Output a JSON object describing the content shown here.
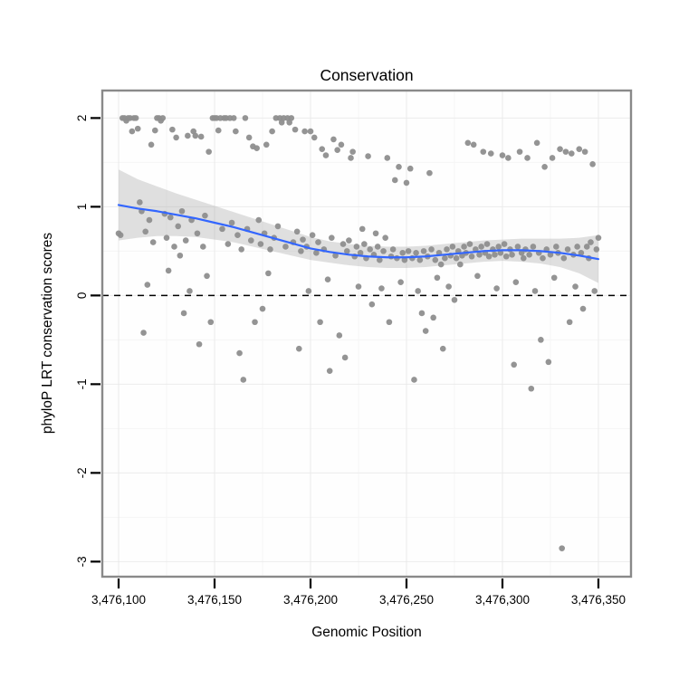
{
  "chart_data": {
    "type": "scatter",
    "title": "Conservation",
    "xlabel": "Genomic Position",
    "ylabel": "phyloP LRT conservation scores",
    "xlim": [
      3476091.5,
      3476367
    ],
    "ylim": [
      -3.17,
      2.31
    ],
    "grid": true,
    "x_ticks": [
      {
        "value": 3476100,
        "label": "3,476,100"
      },
      {
        "value": 3476150,
        "label": "3,476,150"
      },
      {
        "value": 3476200,
        "label": "3,476,200"
      },
      {
        "value": 3476250,
        "label": "3,476,250"
      },
      {
        "value": 3476300,
        "label": "3,476,300"
      },
      {
        "value": 3476350,
        "label": "3,476,350"
      }
    ],
    "x_minor_ticks": [
      3476125,
      3476175,
      3476225,
      3476275,
      3476325
    ],
    "y_ticks": [
      {
        "value": -3,
        "label": "-3"
      },
      {
        "value": -2,
        "label": "-2"
      },
      {
        "value": -1,
        "label": "-1"
      },
      {
        "value": 0,
        "label": "0"
      },
      {
        "value": 1,
        "label": "1"
      },
      {
        "value": 2,
        "label": "2"
      }
    ],
    "y_minor_ticks": [
      -2.5,
      -1.5,
      -0.5,
      0.5,
      1.5
    ],
    "zero_line": {
      "y": 0,
      "style": "dashed",
      "color": "#000000"
    },
    "colors": {
      "point": "#8e8e8e",
      "smooth_line": "#3366ff",
      "band": "#999999",
      "band_opacity": 0.3,
      "panel_bg": "#fefefe",
      "grid_major": "#ebebeb",
      "grid_minor": "#f5f5f5",
      "panel_border": "#898989",
      "text": "#000000"
    },
    "smooth": {
      "method": "loess",
      "x": [
        3476100,
        3476110,
        3476120,
        3476130,
        3476140,
        3476150,
        3476160,
        3476170,
        3476180,
        3476190,
        3476200,
        3476210,
        3476220,
        3476230,
        3476240,
        3476250,
        3476260,
        3476270,
        3476280,
        3476290,
        3476300,
        3476310,
        3476320,
        3476330,
        3476340,
        3476350
      ],
      "y": [
        1.02,
        0.98,
        0.95,
        0.91,
        0.87,
        0.82,
        0.77,
        0.71,
        0.65,
        0.59,
        0.53,
        0.49,
        0.46,
        0.44,
        0.43,
        0.43,
        0.44,
        0.46,
        0.48,
        0.5,
        0.51,
        0.51,
        0.5,
        0.48,
        0.45,
        0.41
      ],
      "upper": [
        1.42,
        1.31,
        1.23,
        1.15,
        1.08,
        1.01,
        0.94,
        0.87,
        0.8,
        0.73,
        0.66,
        0.61,
        0.58,
        0.56,
        0.55,
        0.55,
        0.56,
        0.58,
        0.6,
        0.62,
        0.63,
        0.64,
        0.64,
        0.64,
        0.65,
        0.68
      ],
      "lower": [
        0.62,
        0.65,
        0.67,
        0.67,
        0.66,
        0.63,
        0.6,
        0.55,
        0.5,
        0.45,
        0.4,
        0.37,
        0.34,
        0.32,
        0.31,
        0.31,
        0.32,
        0.34,
        0.36,
        0.38,
        0.39,
        0.38,
        0.36,
        0.32,
        0.25,
        0.14
      ]
    },
    "points": [
      [
        3476100,
        0.7
      ],
      [
        3476101,
        0.68
      ],
      [
        3476102,
        2
      ],
      [
        3476103,
        2
      ],
      [
        3476104,
        1.97
      ],
      [
        3476105,
        2
      ],
      [
        3476106,
        2
      ],
      [
        3476107,
        1.85
      ],
      [
        3476108,
        2
      ],
      [
        3476109,
        2
      ],
      [
        3476110,
        1.88
      ],
      [
        3476111,
        1.05
      ],
      [
        3476112,
        0.95
      ],
      [
        3476113,
        -0.42
      ],
      [
        3476114,
        0.72
      ],
      [
        3476115,
        0.12
      ],
      [
        3476116,
        0.85
      ],
      [
        3476117,
        1.7
      ],
      [
        3476118,
        0.6
      ],
      [
        3476119,
        1.86
      ],
      [
        3476120,
        2
      ],
      [
        3476121,
        2
      ],
      [
        3476122,
        1.97
      ],
      [
        3476123,
        2
      ],
      [
        3476124,
        0.92
      ],
      [
        3476125,
        0.65
      ],
      [
        3476126,
        0.28
      ],
      [
        3476127,
        0.88
      ],
      [
        3476128,
        1.87
      ],
      [
        3476129,
        0.55
      ],
      [
        3476130,
        1.78
      ],
      [
        3476131,
        0.78
      ],
      [
        3476132,
        0.45
      ],
      [
        3476133,
        0.95
      ],
      [
        3476134,
        -0.2
      ],
      [
        3476135,
        0.62
      ],
      [
        3476136,
        1.8
      ],
      [
        3476137,
        0.05
      ],
      [
        3476138,
        0.85
      ],
      [
        3476139,
        1.85
      ],
      [
        3476140,
        1.8
      ],
      [
        3476141,
        0.7
      ],
      [
        3476142,
        -0.55
      ],
      [
        3476143,
        1.79
      ],
      [
        3476144,
        0.55
      ],
      [
        3476145,
        0.9
      ],
      [
        3476146,
        0.22
      ],
      [
        3476147,
        1.62
      ],
      [
        3476148,
        -0.3
      ],
      [
        3476149,
        2
      ],
      [
        3476150,
        2
      ],
      [
        3476151,
        2
      ],
      [
        3476152,
        1.86
      ],
      [
        3476153,
        2
      ],
      [
        3476154,
        0.75
      ],
      [
        3476155,
        2
      ],
      [
        3476156,
        2
      ],
      [
        3476157,
        0.58
      ],
      [
        3476158,
        2
      ],
      [
        3476159,
        0.82
      ],
      [
        3476160,
        2
      ],
      [
        3476161,
        1.85
      ],
      [
        3476162,
        0.68
      ],
      [
        3476163,
        -0.65
      ],
      [
        3476164,
        0.52
      ],
      [
        3476165,
        -0.95
      ],
      [
        3476166,
        2
      ],
      [
        3476167,
        0.75
      ],
      [
        3476168,
        1.78
      ],
      [
        3476169,
        0.62
      ],
      [
        3476170,
        1.68
      ],
      [
        3476171,
        -0.3
      ],
      [
        3476172,
        1.66
      ],
      [
        3476173,
        0.85
      ],
      [
        3476174,
        0.58
      ],
      [
        3476175,
        -0.15
      ],
      [
        3476176,
        0.7
      ],
      [
        3476177,
        1.7
      ],
      [
        3476178,
        0.25
      ],
      [
        3476179,
        0.52
      ],
      [
        3476180,
        1.85
      ],
      [
        3476181,
        0.65
      ],
      [
        3476182,
        2
      ],
      [
        3476183,
        0.78
      ],
      [
        3476184,
        2
      ],
      [
        3476185,
        1.95
      ],
      [
        3476186,
        2
      ],
      [
        3476187,
        0.55
      ],
      [
        3476188,
        2
      ],
      [
        3476189,
        1.95
      ],
      [
        3476190,
        2
      ],
      [
        3476191,
        0.6
      ],
      [
        3476192,
        1.87
      ],
      [
        3476193,
        0.72
      ],
      [
        3476194,
        -0.6
      ],
      [
        3476195,
        0.5
      ],
      [
        3476196,
        0.63
      ],
      [
        3476197,
        1.85
      ],
      [
        3476198,
        0.55
      ],
      [
        3476199,
        0.05
      ],
      [
        3476200,
        1.85
      ],
      [
        3476201,
        0.68
      ],
      [
        3476202,
        1.78
      ],
      [
        3476203,
        0.48
      ],
      [
        3476204,
        0.6
      ],
      [
        3476205,
        -0.3
      ],
      [
        3476206,
        1.65
      ],
      [
        3476207,
        0.52
      ],
      [
        3476208,
        1.58
      ],
      [
        3476209,
        0.18
      ],
      [
        3476210,
        -0.85
      ],
      [
        3476211,
        0.65
      ],
      [
        3476212,
        1.76
      ],
      [
        3476213,
        0.45
      ],
      [
        3476214,
        1.64
      ],
      [
        3476215,
        -0.45
      ],
      [
        3476216,
        1.7
      ],
      [
        3476217,
        0.58
      ],
      [
        3476218,
        -0.7
      ],
      [
        3476219,
        0.5
      ],
      [
        3476220,
        0.62
      ],
      [
        3476221,
        1.55
      ],
      [
        3476222,
        1.62
      ],
      [
        3476223,
        0.44
      ],
      [
        3476224,
        0.55
      ],
      [
        3476225,
        0.1
      ],
      [
        3476226,
        0.48
      ],
      [
        3476227,
        0.75
      ],
      [
        3476228,
        0.58
      ],
      [
        3476229,
        0.42
      ],
      [
        3476230,
        1.57
      ],
      [
        3476231,
        0.52
      ],
      [
        3476232,
        -0.1
      ],
      [
        3476233,
        0.46
      ],
      [
        3476234,
        0.7
      ],
      [
        3476235,
        0.55
      ],
      [
        3476236,
        0.4
      ],
      [
        3476237,
        0.08
      ],
      [
        3476238,
        0.5
      ],
      [
        3476239,
        0.65
      ],
      [
        3476240,
        1.55
      ],
      [
        3476241,
        -0.3
      ],
      [
        3476242,
        0.44
      ],
      [
        3476243,
        0.52
      ],
      [
        3476244,
        1.3
      ],
      [
        3476245,
        0.42
      ],
      [
        3476246,
        1.45
      ],
      [
        3476247,
        0.15
      ],
      [
        3476248,
        0.48
      ],
      [
        3476249,
        0.4
      ],
      [
        3476250,
        1.27
      ],
      [
        3476251,
        0.5
      ],
      [
        3476252,
        1.43
      ],
      [
        3476253,
        0.42
      ],
      [
        3476254,
        -0.95
      ],
      [
        3476255,
        0.48
      ],
      [
        3476256,
        0.05
      ],
      [
        3476257,
        0.4
      ],
      [
        3476258,
        -0.2
      ],
      [
        3476259,
        0.5
      ],
      [
        3476260,
        -0.4
      ],
      [
        3476261,
        0.44
      ],
      [
        3476262,
        1.38
      ],
      [
        3476263,
        0.52
      ],
      [
        3476264,
        -0.25
      ],
      [
        3476265,
        0.4
      ],
      [
        3476266,
        0.2
      ],
      [
        3476267,
        0.48
      ],
      [
        3476268,
        0.35
      ],
      [
        3476269,
        -0.6
      ],
      [
        3476270,
        0.42
      ],
      [
        3476271,
        0.52
      ],
      [
        3476272,
        0.1
      ],
      [
        3476273,
        0.45
      ],
      [
        3476274,
        0.55
      ],
      [
        3476275,
        -0.05
      ],
      [
        3476276,
        0.42
      ],
      [
        3476277,
        0.5
      ],
      [
        3476278,
        0.35
      ],
      [
        3476279,
        0.45
      ],
      [
        3476280,
        0.55
      ],
      [
        3476281,
        0.48
      ],
      [
        3476282,
        1.72
      ],
      [
        3476283,
        0.58
      ],
      [
        3476284,
        0.44
      ],
      [
        3476285,
        1.7
      ],
      [
        3476286,
        0.52
      ],
      [
        3476287,
        0.22
      ],
      [
        3476288,
        0.46
      ],
      [
        3476289,
        0.55
      ],
      [
        3476290,
        1.62
      ],
      [
        3476291,
        0.48
      ],
      [
        3476292,
        0.58
      ],
      [
        3476293,
        0.44
      ],
      [
        3476294,
        1.6
      ],
      [
        3476295,
        0.52
      ],
      [
        3476296,
        0.46
      ],
      [
        3476297,
        0.08
      ],
      [
        3476298,
        0.55
      ],
      [
        3476299,
        0.48
      ],
      [
        3476300,
        1.58
      ],
      [
        3476301,
        0.58
      ],
      [
        3476302,
        0.44
      ],
      [
        3476303,
        1.55
      ],
      [
        3476304,
        0.52
      ],
      [
        3476305,
        0.46
      ],
      [
        3476306,
        -0.78
      ],
      [
        3476307,
        0.15
      ],
      [
        3476308,
        0.55
      ],
      [
        3476309,
        1.62
      ],
      [
        3476310,
        0.48
      ],
      [
        3476311,
        0.42
      ],
      [
        3476312,
        0.52
      ],
      [
        3476313,
        1.55
      ],
      [
        3476314,
        0.46
      ],
      [
        3476315,
        -1.05
      ],
      [
        3476316,
        0.55
      ],
      [
        3476317,
        0.05
      ],
      [
        3476318,
        1.72
      ],
      [
        3476319,
        0.48
      ],
      [
        3476320,
        -0.5
      ],
      [
        3476321,
        0.42
      ],
      [
        3476322,
        1.45
      ],
      [
        3476323,
        0.52
      ],
      [
        3476324,
        -0.75
      ],
      [
        3476325,
        0.46
      ],
      [
        3476326,
        1.55
      ],
      [
        3476327,
        0.2
      ],
      [
        3476328,
        0.55
      ],
      [
        3476329,
        0.48
      ],
      [
        3476330,
        1.65
      ],
      [
        3476331,
        -2.85
      ],
      [
        3476332,
        0.42
      ],
      [
        3476333,
        1.62
      ],
      [
        3476334,
        0.52
      ],
      [
        3476335,
        -0.3
      ],
      [
        3476336,
        1.6
      ],
      [
        3476337,
        0.46
      ],
      [
        3476338,
        0.1
      ],
      [
        3476339,
        0.55
      ],
      [
        3476340,
        1.65
      ],
      [
        3476341,
        0.48
      ],
      [
        3476342,
        -0.15
      ],
      [
        3476343,
        1.62
      ],
      [
        3476344,
        0.55
      ],
      [
        3476345,
        0.42
      ],
      [
        3476346,
        0.6
      ],
      [
        3476347,
        1.48
      ],
      [
        3476348,
        0.05
      ],
      [
        3476349,
        0.52
      ],
      [
        3476350,
        0.65
      ]
    ]
  }
}
